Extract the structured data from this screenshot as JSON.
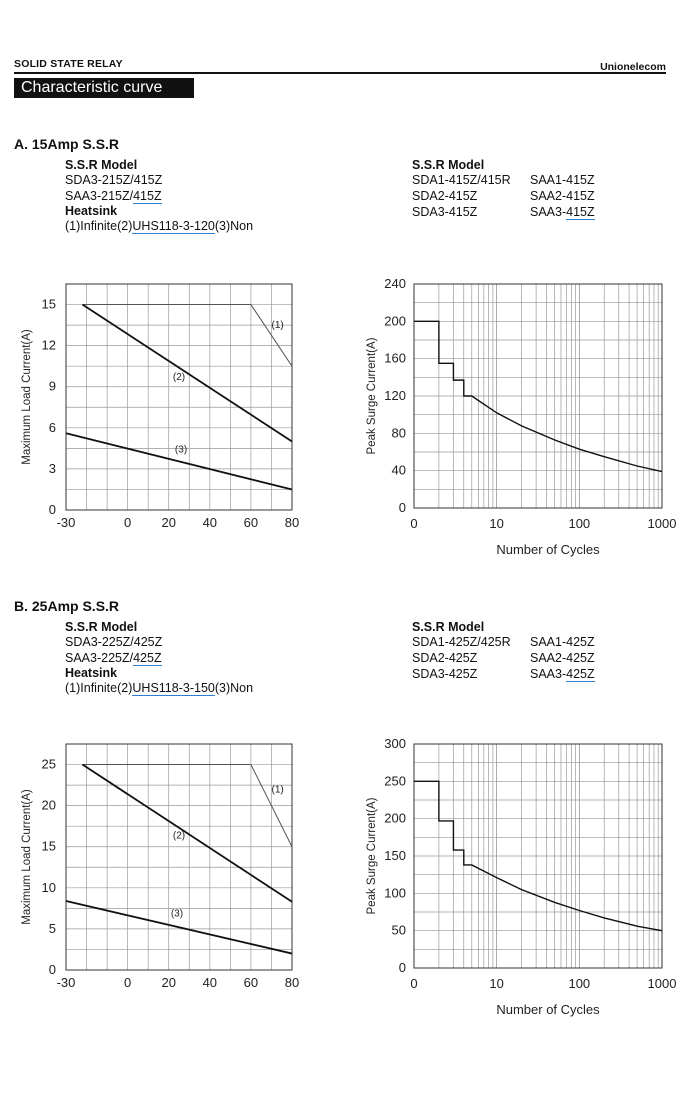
{
  "header": {
    "left": "SOLID STATE RELAY",
    "right": "Unionelecom",
    "title": "Characteristic curve"
  },
  "sections": [
    {
      "title": "A. 15Amp S.S.R",
      "left_block": {
        "model_heading": "S.S.R Model",
        "model_line1": "SDA3-215Z/415Z",
        "model_line2_a": "SAA3-215Z/",
        "model_line2_b": "415Z",
        "heatsink_heading": "Heatsink",
        "heatsink_a": "(1)Infinite(2)",
        "heatsink_b": "UHS118-3-120",
        "heatsink_c": "(3)Non"
      },
      "right_block": {
        "heading": "S.S.R Model",
        "c1": [
          "SDA1-415Z/415R",
          "SDA2-415Z",
          "SDA3-415Z"
        ],
        "c2": [
          "SAA1-415Z",
          "SAA2-415Z"
        ],
        "c2_last_a": "SAA3-",
        "c2_last_b": "415Z"
      }
    },
    {
      "title": "B. 25Amp S.S.R",
      "left_block": {
        "model_heading": "S.S.R Model",
        "model_line1": "SDA3-225Z/425Z",
        "model_line2_a": "SAA3-225Z/",
        "model_line2_b": "425Z",
        "heatsink_heading": "Heatsink",
        "heatsink_a": "(1)Infinite(2)",
        "heatsink_b": "UHS118-3-150",
        "heatsink_c": "(3)Non"
      },
      "right_block": {
        "heading": "S.S.R Model",
        "c1": [
          "SDA1-425Z/425R",
          "SDA2-425Z",
          "SDA3-425Z"
        ],
        "c2": [
          "SAA1-425Z",
          "SAA2-425Z"
        ],
        "c2_last_a": "SAA3-",
        "c2_last_b": "425Z"
      }
    }
  ],
  "chart_data": [
    {
      "type": "line",
      "ylabel": "Maximum Load Current(A)",
      "xlabel": "",
      "xlim": [
        -30,
        80
      ],
      "ylim": [
        0,
        16.5
      ],
      "xticks": [
        -30,
        0,
        20,
        40,
        60,
        80
      ],
      "yticks": [
        0,
        3,
        6,
        9,
        12,
        15
      ],
      "grid": true,
      "series": [
        {
          "name": "(1)",
          "points": [
            [
              -22,
              15
            ],
            [
              60,
              15
            ],
            [
              80,
              10.5
            ]
          ],
          "label_at": [
            73,
            13.3
          ]
        },
        {
          "name": "(2)",
          "points": [
            [
              -22,
              15
            ],
            [
              80,
              5
            ]
          ],
          "label_at": [
            25,
            9.5
          ]
        },
        {
          "name": "(3)",
          "points": [
            [
              -30,
              5.6
            ],
            [
              80,
              1.5
            ]
          ],
          "label_at": [
            26,
            4.2
          ]
        }
      ]
    },
    {
      "type": "line",
      "ylabel": "Peak Surge Current(A)",
      "xlabel": "Number of Cycles",
      "xscale": "log",
      "xlim": [
        1,
        1000
      ],
      "ylim": [
        0,
        240
      ],
      "xtick_labels": [
        "0",
        "10",
        "100",
        "1000"
      ],
      "yticks": [
        0,
        40,
        80,
        120,
        160,
        200,
        240
      ],
      "grid": true,
      "series": [
        {
          "name": "",
          "points": [
            [
              1,
              200
            ],
            [
              2,
              200
            ],
            [
              2,
              155
            ],
            [
              3,
              155
            ],
            [
              3,
              137
            ],
            [
              4,
              137
            ],
            [
              4,
              120
            ],
            [
              5,
              120
            ],
            [
              10,
              102
            ],
            [
              20,
              88
            ],
            [
              50,
              73
            ],
            [
              100,
              63
            ],
            [
              200,
              55
            ],
            [
              500,
              45
            ],
            [
              1000,
              39
            ]
          ]
        }
      ]
    },
    {
      "type": "line",
      "ylabel": "Maximum Load Current(A)",
      "xlabel": "",
      "xlim": [
        -30,
        80
      ],
      "ylim": [
        0,
        27.5
      ],
      "xticks": [
        -30,
        0,
        20,
        40,
        60,
        80
      ],
      "yticks": [
        0,
        5,
        10,
        15,
        20,
        25
      ],
      "grid": true,
      "series": [
        {
          "name": "(1)",
          "points": [
            [
              -22,
              25
            ],
            [
              60,
              25
            ],
            [
              80,
              15
            ]
          ],
          "label_at": [
            73,
            21.6
          ]
        },
        {
          "name": "(2)",
          "points": [
            [
              -22,
              25
            ],
            [
              80,
              8.3
            ]
          ],
          "label_at": [
            25,
            16
          ]
        },
        {
          "name": "(3)",
          "points": [
            [
              -30,
              8.4
            ],
            [
              80,
              2
            ]
          ],
          "label_at": [
            24,
            6.5
          ]
        }
      ]
    },
    {
      "type": "line",
      "ylabel": "Peak Surge Current(A)",
      "xlabel": "Number of Cycles",
      "xscale": "log",
      "xlim": [
        1,
        1000
      ],
      "ylim": [
        0,
        300
      ],
      "xtick_labels": [
        "0",
        "10",
        "100",
        "1000"
      ],
      "yticks": [
        0,
        50,
        100,
        150,
        200,
        250,
        300
      ],
      "grid": true,
      "series": [
        {
          "name": "",
          "points": [
            [
              1,
              250
            ],
            [
              2,
              250
            ],
            [
              2,
              197
            ],
            [
              3,
              197
            ],
            [
              3,
              158
            ],
            [
              4,
              158
            ],
            [
              4,
              138
            ],
            [
              5,
              138
            ],
            [
              10,
              121
            ],
            [
              20,
              105
            ],
            [
              50,
              88
            ],
            [
              100,
              77
            ],
            [
              200,
              67
            ],
            [
              500,
              56
            ],
            [
              1000,
              50
            ]
          ]
        }
      ]
    }
  ]
}
